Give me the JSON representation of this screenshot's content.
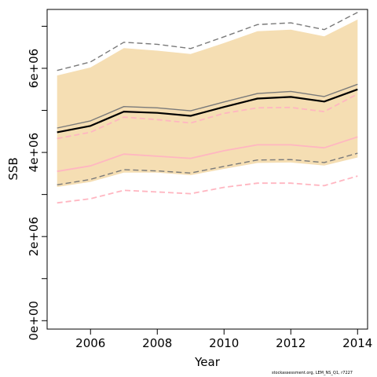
{
  "chart_data": {
    "type": "line",
    "title": "",
    "xlabel": "Year",
    "ylabel": "SSB",
    "xlim": [
      2004.7,
      2014.3
    ],
    "ylim": [
      -200000,
      7400000
    ],
    "x_ticks": [
      2006,
      2008,
      2010,
      2012,
      2014
    ],
    "x_tick_labels": [
      "2006",
      "2008",
      "2010",
      "2012",
      "2014"
    ],
    "y_ticks": [
      0,
      1000000,
      2000000,
      3000000,
      4000000,
      5000000,
      6000000,
      7000000
    ],
    "y_tick_labels": [
      "0e+00",
      "",
      "2e+06",
      "",
      "4e+06",
      "",
      "6e+06",
      ""
    ],
    "grid": false,
    "x": [
      2005,
      2006,
      2007,
      2008,
      2009,
      2010,
      2011,
      2012,
      2013,
      2014
    ],
    "band": {
      "color": "#f5deb3",
      "lower": [
        3180000,
        3300000,
        3520000,
        3520000,
        3460000,
        3610000,
        3750000,
        3760000,
        3690000,
        3880000
      ],
      "upper": [
        5830000,
        6020000,
        6480000,
        6420000,
        6340000,
        6600000,
        6880000,
        6920000,
        6760000,
        7160000
      ]
    },
    "series": [
      {
        "color": "#000000",
        "dash": "solid",
        "width": 2.2,
        "values": [
          4480000,
          4630000,
          4970000,
          4940000,
          4870000,
          5080000,
          5280000,
          5320000,
          5210000,
          5500000
        ]
      },
      {
        "color": "#7a7a7a",
        "dash": "solid",
        "width": 1.4,
        "values": [
          4580000,
          4750000,
          5090000,
          5060000,
          4990000,
          5200000,
          5400000,
          5450000,
          5330000,
          5620000
        ]
      },
      {
        "color": "#7a7a7a",
        "dash": "dashed",
        "width": 1.4,
        "values": [
          5950000,
          6150000,
          6620000,
          6570000,
          6470000,
          6750000,
          7040000,
          7080000,
          6920000,
          7330000
        ]
      },
      {
        "color": "#7a7a7a",
        "dash": "dashed",
        "width": 1.4,
        "values": [
          3230000,
          3360000,
          3590000,
          3560000,
          3510000,
          3670000,
          3820000,
          3830000,
          3760000,
          3980000
        ]
      },
      {
        "color": "#ffb6c1",
        "dash": "solid",
        "width": 1.8,
        "values": [
          3550000,
          3680000,
          3960000,
          3910000,
          3860000,
          4040000,
          4180000,
          4180000,
          4110000,
          4370000
        ]
      },
      {
        "color": "#ffb6c1",
        "dash": "dashed",
        "width": 1.8,
        "values": [
          4330000,
          4480000,
          4840000,
          4780000,
          4700000,
          4930000,
          5060000,
          5070000,
          4970000,
          5390000
        ]
      },
      {
        "color": "#ffb6c1",
        "dash": "dashed",
        "width": 1.8,
        "values": [
          2800000,
          2900000,
          3100000,
          3060000,
          3020000,
          3170000,
          3270000,
          3270000,
          3210000,
          3440000
        ]
      }
    ]
  },
  "footer": {
    "credit": "stockassessment.org, LEM_NS_Q1, r7227"
  }
}
